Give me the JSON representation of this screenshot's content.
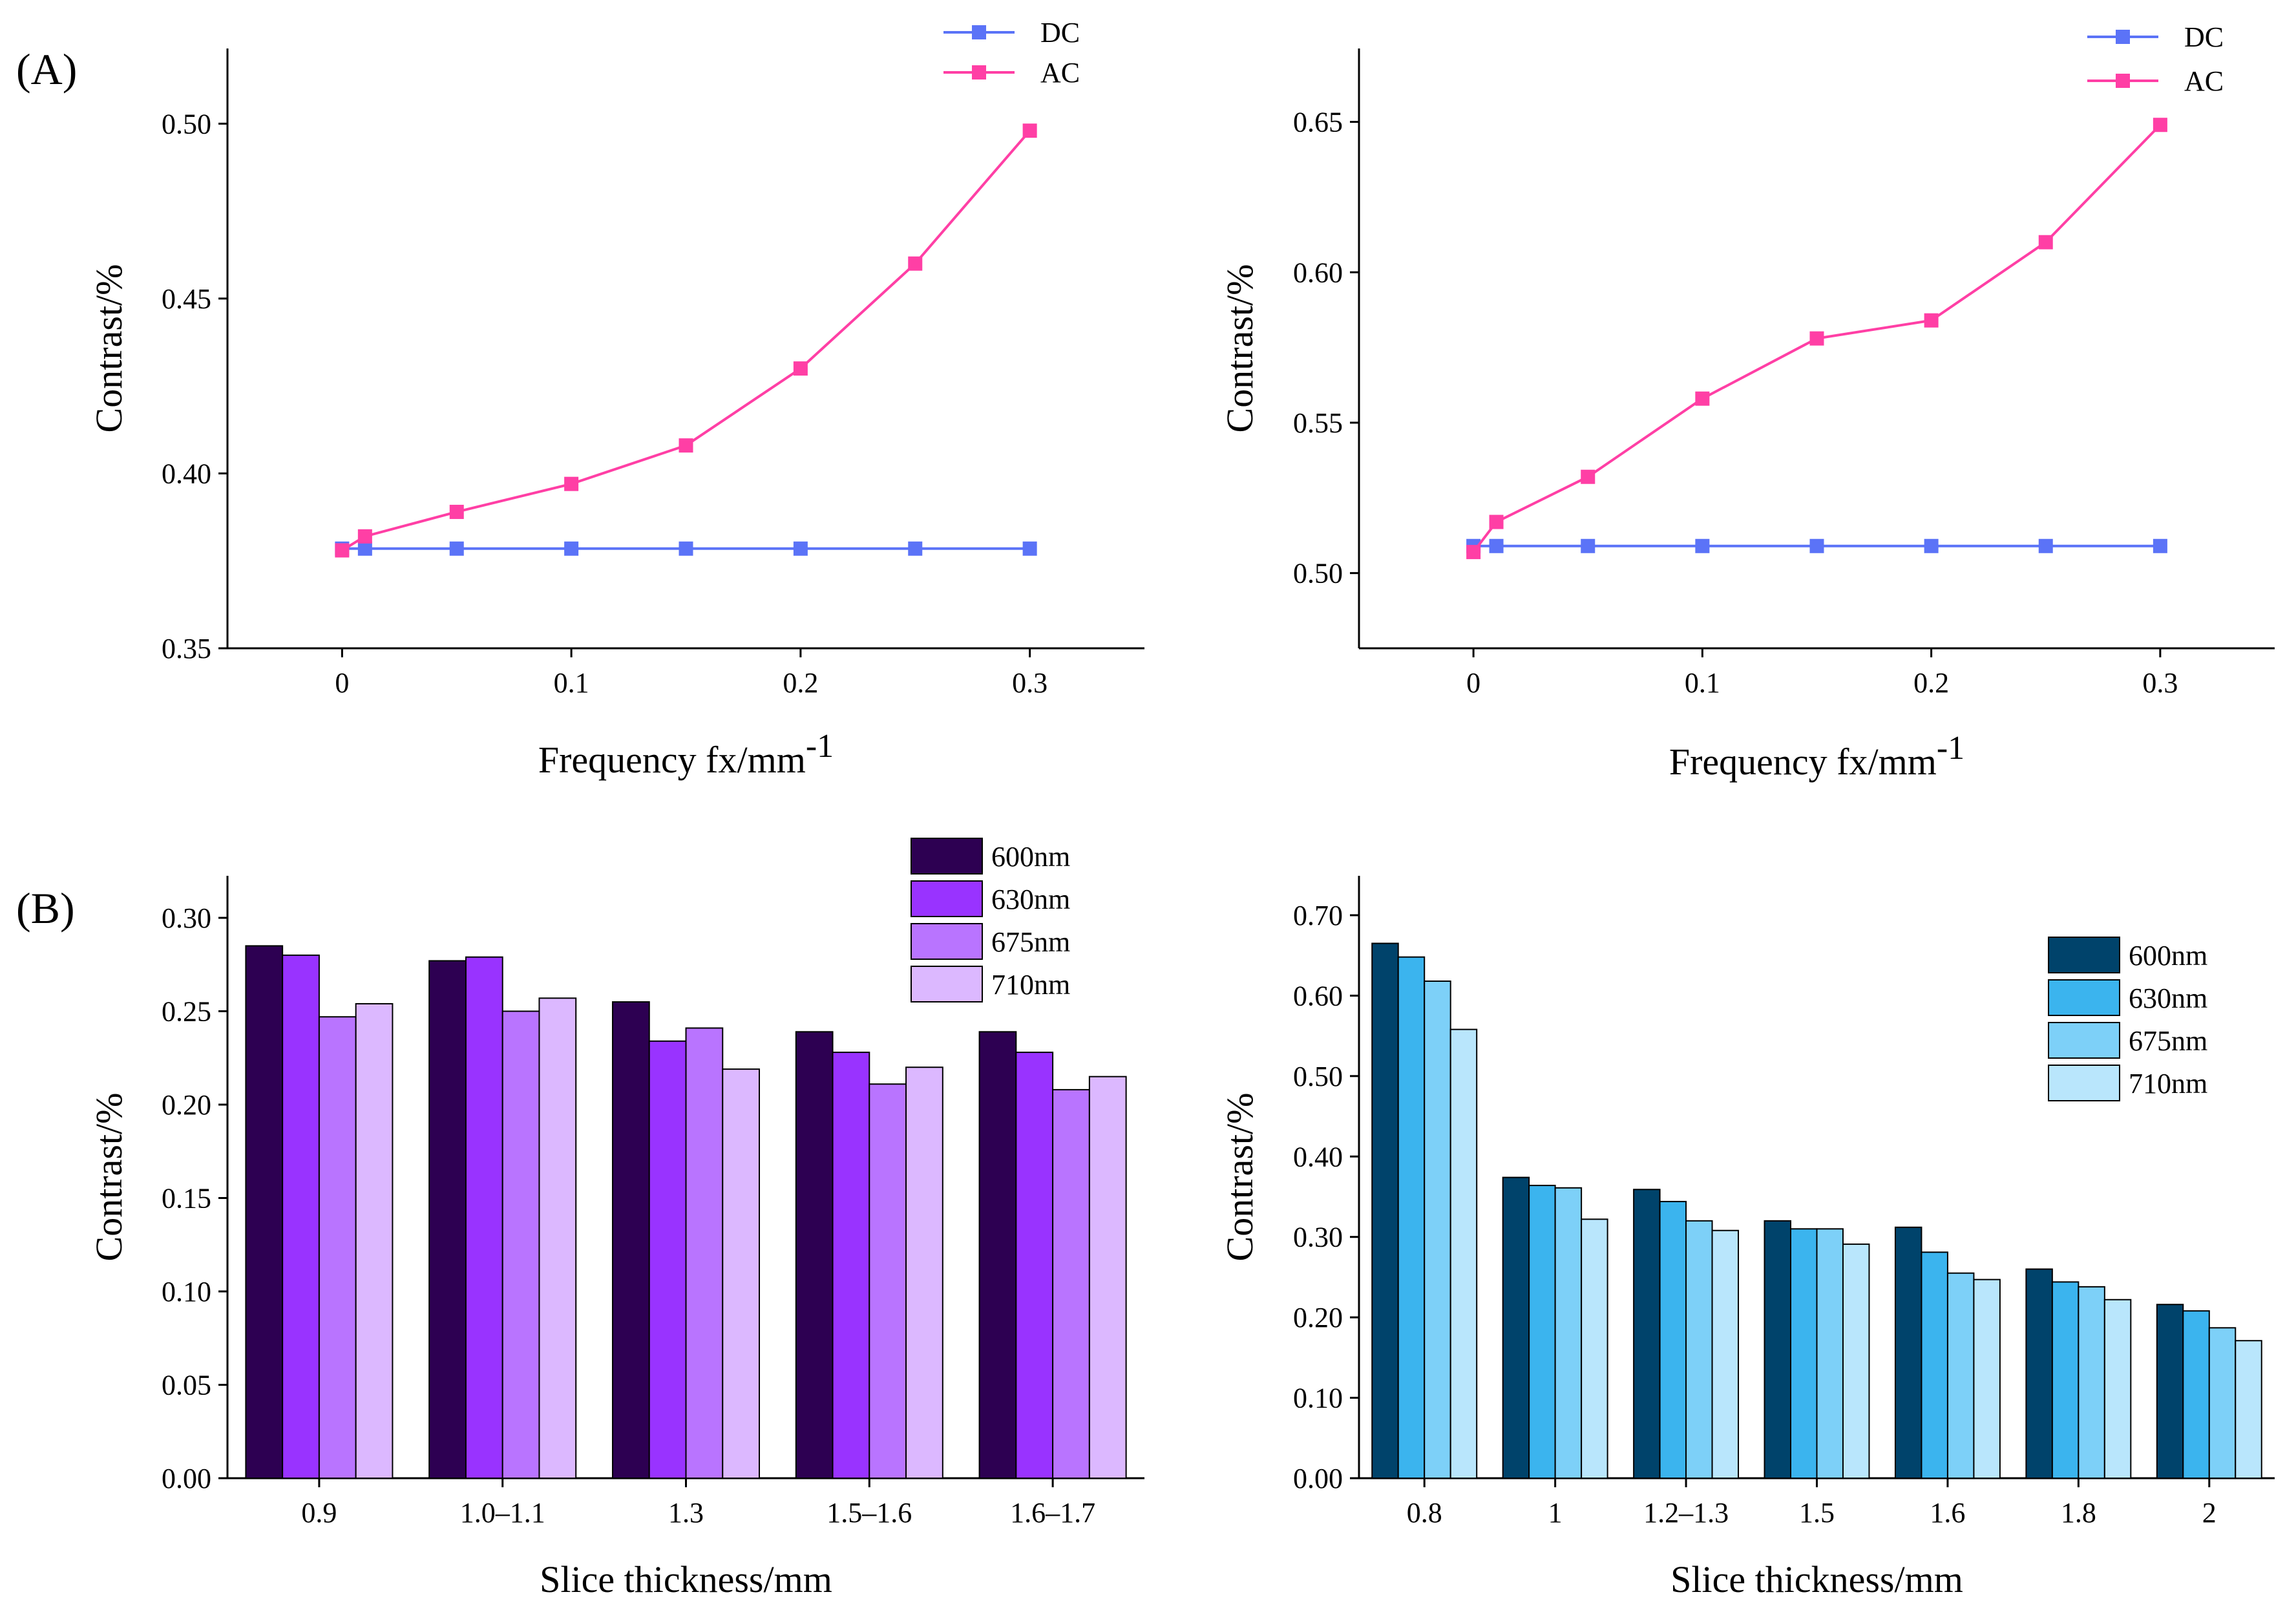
{
  "panel_labels": [
    "(A)",
    "(B)"
  ],
  "colors": {
    "dc": "#5b73f7",
    "ac": "#ff3fa5",
    "purple": [
      "#2d0052",
      "#9933ff",
      "#b974ff",
      "#dcb8ff"
    ],
    "blue": [
      "#00436b",
      "#3bb4ee",
      "#7dd0f8",
      "#b9e6fc"
    ]
  },
  "chart_data": [
    {
      "type": "line",
      "title": "",
      "xlabel": "Frequency fx/mm",
      "xlabel_sup": "-1",
      "ylabel": "Contrast/%",
      "xlim": [
        -0.05,
        0.35
      ],
      "ylim": [
        0.35,
        0.5215
      ],
      "xticks": [
        0,
        0.1,
        0.2,
        0.3
      ],
      "xtick_labels": [
        "0",
        "0.1",
        "0.2",
        "0.3"
      ],
      "yticks": [
        0.35,
        0.4,
        0.45,
        0.5
      ],
      "ytick_labels": [
        "0.35",
        "0.40",
        "0.45",
        "0.50"
      ],
      "x": [
        0,
        0.01,
        0.05,
        0.1,
        0.15,
        0.2,
        0.25,
        0.3
      ],
      "series": [
        {
          "name": "DC",
          "values": [
            0.3785,
            0.3785,
            0.3785,
            0.3785,
            0.3785,
            0.3785,
            0.3785,
            0.3785
          ]
        },
        {
          "name": "AC",
          "values": [
            0.378,
            0.382,
            0.389,
            0.397,
            0.408,
            0.43,
            0.46,
            0.498
          ]
        }
      ],
      "legend": "top-right"
    },
    {
      "type": "line",
      "title": "",
      "xlabel": "Frequency fx/mm",
      "xlabel_sup": "-1",
      "ylabel": "Contrast/%",
      "xlim": [
        -0.05,
        0.35
      ],
      "ylim": [
        0.475,
        0.6744
      ],
      "xticks": [
        0,
        0.1,
        0.2,
        0.3
      ],
      "xtick_labels": [
        "0",
        "0.1",
        "0.2",
        "0.3"
      ],
      "yticks": [
        0.5,
        0.55,
        0.6,
        0.65
      ],
      "ytick_labels": [
        "0.50",
        "0.55",
        "0.60",
        "0.65"
      ],
      "x": [
        0,
        0.01,
        0.05,
        0.1,
        0.15,
        0.2,
        0.25,
        0.3
      ],
      "series": [
        {
          "name": "DC",
          "values": [
            0.509,
            0.509,
            0.509,
            0.509,
            0.509,
            0.509,
            0.509,
            0.509
          ]
        },
        {
          "name": "AC",
          "values": [
            0.507,
            0.517,
            0.532,
            0.558,
            0.578,
            0.584,
            0.61,
            0.649
          ]
        }
      ],
      "legend": "top-right"
    },
    {
      "type": "bar",
      "title": "",
      "xlabel": "Slice thickness/mm",
      "ylabel": "Contrast/%",
      "ylim": [
        0,
        0.3225
      ],
      "yticks": [
        0,
        0.05,
        0.1,
        0.15,
        0.2,
        0.25,
        0.3
      ],
      "ytick_labels": [
        "0.00",
        "0.05",
        "0.10",
        "0.15",
        "0.20",
        "0.25",
        "0.30"
      ],
      "categories": [
        "0.9",
        "1.0–1.1",
        "1.3",
        "1.5–1.6",
        "1.6–1.7"
      ],
      "series": [
        {
          "name": "600nm",
          "values": [
            0.285,
            0.277,
            0.255,
            0.239,
            0.239
          ]
        },
        {
          "name": "630nm",
          "values": [
            0.28,
            0.279,
            0.234,
            0.228,
            0.228
          ]
        },
        {
          "name": "675nm",
          "values": [
            0.247,
            0.25,
            0.241,
            0.211,
            0.208
          ]
        },
        {
          "name": "710nm",
          "values": [
            0.254,
            0.257,
            0.219,
            0.22,
            0.215
          ]
        }
      ],
      "legend": "top-right"
    },
    {
      "type": "bar",
      "title": "",
      "xlabel": "Slice thickness/mm",
      "ylabel": "Contrast/%",
      "ylim": [
        0,
        0.749
      ],
      "yticks": [
        0,
        0.1,
        0.2,
        0.3,
        0.4,
        0.5,
        0.6,
        0.7
      ],
      "ytick_labels": [
        "0.00",
        "0.10",
        "0.20",
        "0.30",
        "0.40",
        "0.50",
        "0.60",
        "0.70"
      ],
      "categories": [
        "0.8",
        "1",
        "1.2–1.3",
        "1.5",
        "1.6",
        "1.8",
        "2"
      ],
      "series": [
        {
          "name": "600nm",
          "values": [
            0.665,
            0.374,
            0.359,
            0.32,
            0.312,
            0.26,
            0.216
          ]
        },
        {
          "name": "630nm",
          "values": [
            0.648,
            0.364,
            0.344,
            0.31,
            0.281,
            0.244,
            0.208
          ]
        },
        {
          "name": "675nm",
          "values": [
            0.618,
            0.361,
            0.32,
            0.31,
            0.255,
            0.238,
            0.187
          ]
        },
        {
          "name": "710nm",
          "values": [
            0.558,
            0.322,
            0.308,
            0.291,
            0.247,
            0.222,
            0.171
          ]
        }
      ],
      "legend": "top-right"
    }
  ]
}
